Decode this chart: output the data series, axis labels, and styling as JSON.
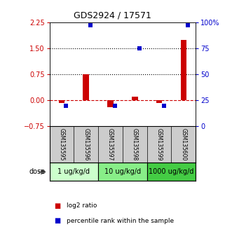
{
  "title": "GDS2924 / 17571",
  "samples": [
    "GSM135595",
    "GSM135596",
    "GSM135597",
    "GSM135598",
    "GSM135599",
    "GSM135600"
  ],
  "log2_ratio": [
    -0.07,
    0.75,
    -0.2,
    0.1,
    -0.07,
    1.75
  ],
  "percentile_rank": [
    20,
    97,
    20,
    75,
    20,
    97
  ],
  "dose_groups": [
    {
      "label": "1 ug/kg/d",
      "n": 2,
      "color": "#ccffcc"
    },
    {
      "label": "10 ug/kg/d",
      "n": 2,
      "color": "#88ee88"
    },
    {
      "label": "1000 ug/kg/d",
      "n": 2,
      "color": "#44cc44"
    }
  ],
  "ylim_left": [
    -0.75,
    2.25
  ],
  "ylim_right": [
    0,
    100
  ],
  "yticks_left": [
    -0.75,
    0,
    0.75,
    1.5,
    2.25
  ],
  "yticks_right": [
    0,
    25,
    50,
    75,
    100
  ],
  "hlines_dotted": [
    0.75,
    1.5
  ],
  "hline_dashed": 0,
  "bar_color_red": "#cc0000",
  "bar_color_blue": "#0000cc",
  "bar_width": 0.25,
  "blue_marker_size": 4,
  "left_tick_color": "#cc0000",
  "right_tick_color": "#0000cc",
  "background_color": "#ffffff"
}
